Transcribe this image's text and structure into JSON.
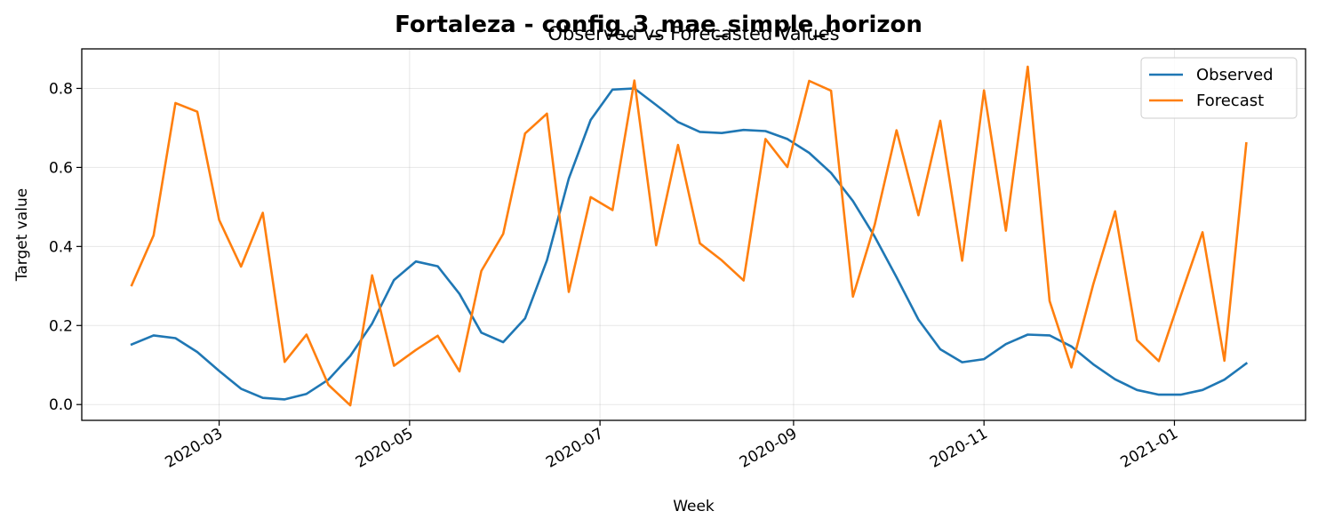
{
  "chart_data": {
    "type": "line",
    "title": "Fortaleza - config_3_mae_simple_horizon",
    "subtitle": "Observed vs Forecasted Values",
    "xlabel": "Week",
    "ylabel": "Target value",
    "x_start": "2020-02-02",
    "x_step_days": 7,
    "xlim": [
      "2020-01-17",
      "2021-02-12"
    ],
    "ylim": [
      -0.04,
      0.9
    ],
    "xticks": [
      {
        "date": "2020-03-01",
        "label": "2020-03"
      },
      {
        "date": "2020-05-01",
        "label": "2020-05"
      },
      {
        "date": "2020-07-01",
        "label": "2020-07"
      },
      {
        "date": "2020-09-01",
        "label": "2020-09"
      },
      {
        "date": "2020-11-01",
        "label": "2020-11"
      },
      {
        "date": "2021-01-01",
        "label": "2021-01"
      }
    ],
    "yticks": [
      {
        "value": 0.0,
        "label": "0.0"
      },
      {
        "value": 0.2,
        "label": "0.2"
      },
      {
        "value": 0.4,
        "label": "0.4"
      },
      {
        "value": 0.6,
        "label": "0.6"
      },
      {
        "value": 0.8,
        "label": "0.8"
      }
    ],
    "grid": true,
    "legend_position": "top-right",
    "series": [
      {
        "name": "Observed",
        "color": "#1f77b4",
        "values": [
          0.152,
          0.175,
          0.168,
          0.133,
          0.085,
          0.04,
          0.017,
          0.013,
          0.027,
          0.063,
          0.123,
          0.205,
          0.315,
          0.362,
          0.35,
          0.28,
          0.182,
          0.158,
          0.218,
          0.365,
          0.572,
          0.72,
          0.797,
          0.8,
          0.758,
          0.715,
          0.69,
          0.687,
          0.695,
          0.692,
          0.672,
          0.637,
          0.586,
          0.515,
          0.425,
          0.322,
          0.215,
          0.14,
          0.107,
          0.115,
          0.153,
          0.177,
          0.175,
          0.147,
          0.102,
          0.064,
          0.037,
          0.025,
          0.025,
          0.037,
          0.063,
          0.104
        ]
      },
      {
        "name": "Forecast",
        "color": "#ff7f0e",
        "values": [
          0.302,
          0.428,
          0.763,
          0.741,
          0.467,
          0.349,
          0.485,
          0.108,
          0.177,
          0.05,
          -0.002,
          0.327,
          0.098,
          0.138,
          0.174,
          0.084,
          0.338,
          0.432,
          0.686,
          0.736,
          0.285,
          0.525,
          0.492,
          0.82,
          0.403,
          0.657,
          0.408,
          0.365,
          0.314,
          0.672,
          0.601,
          0.819,
          0.794,
          0.273,
          0.455,
          0.694,
          0.479,
          0.718,
          0.364,
          0.795,
          0.44,
          0.855,
          0.262,
          0.094,
          0.304,
          0.489,
          0.163,
          0.11,
          0.275,
          0.436,
          0.111,
          0.661
        ]
      }
    ]
  }
}
